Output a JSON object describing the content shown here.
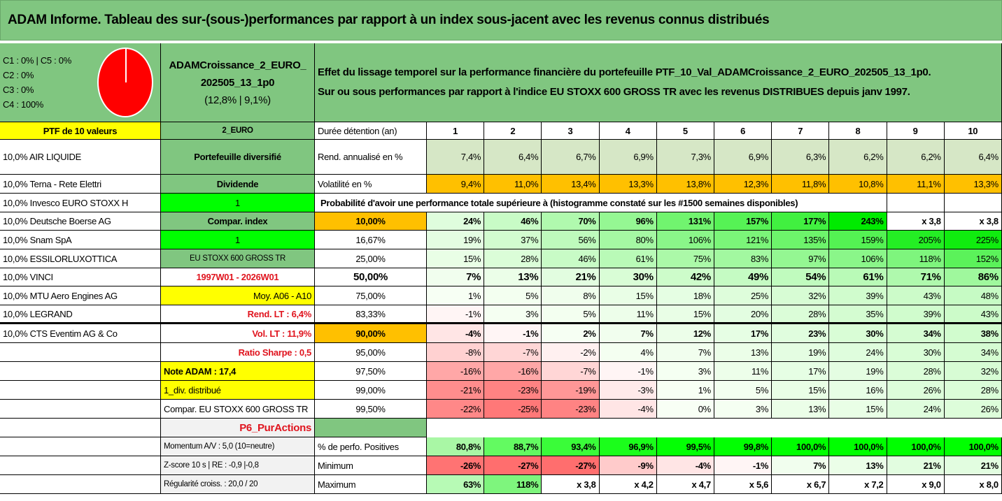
{
  "title": "ADAM Informe. Tableau des sur-(sous-)performances par rapport à un index sous-jacent avec les revenus connus distribués",
  "legend": [
    "C1 : 0% | C5 : 0%",
    "C2 : 0%",
    "C3 : 0%",
    "C4 : 100%"
  ],
  "pie": {
    "C1": 0,
    "C2": 0,
    "C3": 0,
    "C4": 100,
    "C5": 0,
    "color": "#ff0000"
  },
  "portfolio_name": [
    "ADAMCroissance_2_EURO_",
    "202505_13_1p0",
    "(12,8% | 9,1%)"
  ],
  "description": [
    "Effet du lissage temporel sur la performance financière du portefeuille PTF_10_Val_ADAMCroissance_2_EURO_202505_13_1p0.",
    "Sur ou sous performances par rapport à l'indice EU STOXX 600 GROSS TR avec les revenus DISTRIBUES depuis janv 1997."
  ],
  "col_a": [
    "PTF de 10 valeurs",
    "10,0% AIR LIQUIDE",
    "10,0% Terna - Rete Elettri",
    "10,0% Invesco EURO STOXX H",
    "10,0% Deutsche Boerse AG",
    "10,0% Snam SpA",
    "10,0% ESSILORLUXOTTICA",
    "10,0% VINCI",
    "10,0% MTU Aero Engines AG",
    "10,0% LEGRAND",
    "10,0% CTS Eventim AG & Co",
    "",
    "",
    "",
    "",
    "",
    "",
    "",
    ""
  ],
  "col_b": [
    "2_EURO",
    "Portefeuille diversifié",
    "Dividende",
    "1",
    "Compar. index",
    "1",
    "EU STOXX 600 GROSS TR",
    "1997W01 - 2026W01",
    "Moy. A06 - A10",
    "Rend. LT : 6,4%",
    "Vol. LT : 11,9%",
    "Ratio Sharpe : 0,5",
    "Note ADAM : 17,4",
    "1_div. distribué",
    "Compar. EU STOXX 600 GROSS TR",
    "P6_PurActions",
    "Momentum A/V : 5,0 (10=neutre)",
    "Z-score 10 s | RE : -0,9 |-0,8",
    "Régularité croiss. : 20,0 / 20"
  ],
  "col_c": [
    "Durée détention (an)",
    "Rend. annualisé en %",
    "Volatilité en %",
    "Probabilité d'avoir une performance totale supérieure à (histogramme constaté sur les #1500 semaines disponibles)",
    "10,00%",
    "16,67%",
    "25,00%",
    "50,00%",
    "75,00%",
    "83,33%",
    "90,00%",
    "95,00%",
    "97,50%",
    "99,00%",
    "99,50%",
    "",
    "% de perfo. Positives",
    "Minimum",
    "Maximum"
  ],
  "values": [
    [
      "1",
      "2",
      "3",
      "4",
      "5",
      "6",
      "7",
      "8",
      "9",
      "10"
    ],
    [
      "7,4%",
      "6,4%",
      "6,7%",
      "6,9%",
      "7,3%",
      "6,9%",
      "6,3%",
      "6,2%",
      "6,2%",
      "6,4%"
    ],
    [
      "9,4%",
      "11,0%",
      "13,4%",
      "13,3%",
      "13,8%",
      "12,3%",
      "11,8%",
      "10,8%",
      "11,1%",
      "13,3%"
    ],
    [],
    [
      "24%",
      "46%",
      "70%",
      "96%",
      "131%",
      "157%",
      "177%",
      "243%",
      "x 3,8",
      "x 3,8"
    ],
    [
      "19%",
      "37%",
      "56%",
      "80%",
      "106%",
      "121%",
      "135%",
      "159%",
      "205%",
      "225%"
    ],
    [
      "15%",
      "28%",
      "46%",
      "61%",
      "75%",
      "83%",
      "97%",
      "106%",
      "118%",
      "152%"
    ],
    [
      "7%",
      "13%",
      "21%",
      "30%",
      "42%",
      "49%",
      "54%",
      "61%",
      "71%",
      "86%"
    ],
    [
      "1%",
      "5%",
      "8%",
      "15%",
      "18%",
      "25%",
      "32%",
      "39%",
      "43%",
      "48%"
    ],
    [
      "-1%",
      "3%",
      "5%",
      "11%",
      "15%",
      "20%",
      "28%",
      "35%",
      "39%",
      "43%"
    ],
    [
      "-4%",
      "-1%",
      "2%",
      "7%",
      "12%",
      "17%",
      "23%",
      "30%",
      "34%",
      "38%"
    ],
    [
      "-8%",
      "-7%",
      "-2%",
      "4%",
      "7%",
      "13%",
      "19%",
      "24%",
      "30%",
      "34%"
    ],
    [
      "-16%",
      "-16%",
      "-7%",
      "-1%",
      "3%",
      "11%",
      "17%",
      "19%",
      "28%",
      "32%"
    ],
    [
      "-21%",
      "-23%",
      "-19%",
      "-3%",
      "1%",
      "5%",
      "15%",
      "16%",
      "26%",
      "28%"
    ],
    [
      "-22%",
      "-25%",
      "-23%",
      "-4%",
      "0%",
      "3%",
      "13%",
      "15%",
      "24%",
      "26%"
    ],
    [],
    [
      "80,8%",
      "88,7%",
      "93,4%",
      "96,9%",
      "99,5%",
      "99,8%",
      "100,0%",
      "100,0%",
      "100,0%",
      "100,0%"
    ],
    [
      "-26%",
      "-27%",
      "-27%",
      "-9%",
      "-4%",
      "-1%",
      "7%",
      "13%",
      "21%",
      "21%"
    ],
    [
      "63%",
      "118%",
      "x 3,8",
      "x 4,2",
      "x 4,7",
      "x 5,6",
      "x 6,7",
      "x 7,2",
      "x 9,0",
      "x 8,0"
    ]
  ],
  "colors": {
    "header_green": "#80c680",
    "yellow": "#ffff00",
    "bright_green": "#00ff00",
    "orange": "#ffc000",
    "red_text": "#e0141e"
  }
}
